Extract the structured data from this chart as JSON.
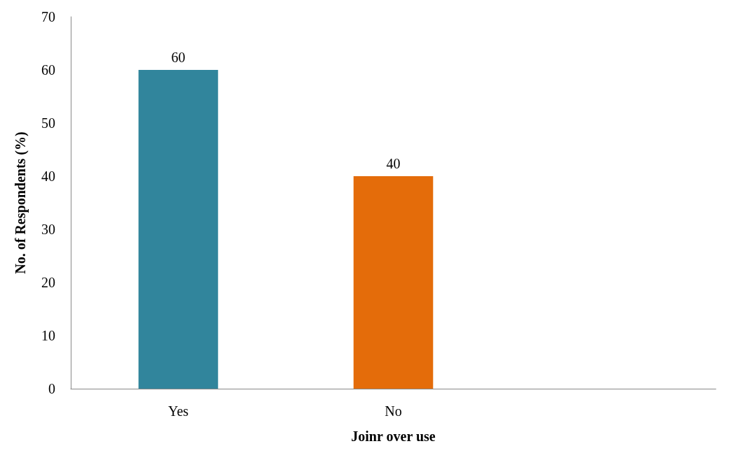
{
  "chart_data": {
    "type": "bar",
    "xlabel": "Joinr over use",
    "ylabel": "No. of Respondents (%)",
    "categories": [
      "Yes",
      "No",
      null
    ],
    "values": [
      60,
      40,
      null
    ],
    "colors": [
      "#31859c",
      "#e46c0a",
      null
    ],
    "ylim": [
      0,
      70
    ],
    "yticks": [
      0,
      10,
      20,
      30,
      40,
      50,
      60,
      70
    ],
    "data_labels": true,
    "grid": false
  }
}
